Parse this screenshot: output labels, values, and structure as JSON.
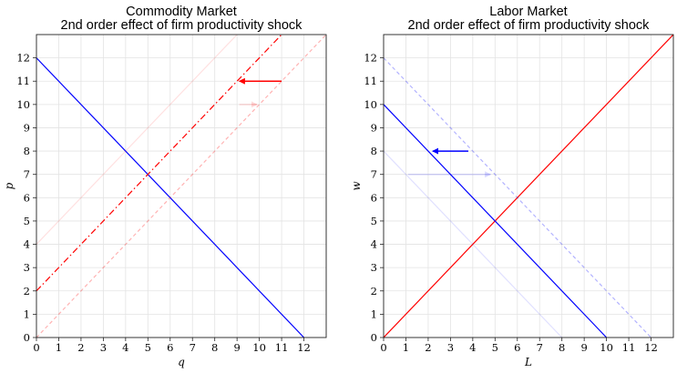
{
  "chart_data": [
    {
      "type": "line",
      "title_line1": "Commodity Market",
      "title_line2": "2nd order effect of firm productivity shock",
      "xlabel": "q",
      "ylabel": "p",
      "xlim": [
        0,
        13
      ],
      "ylim": [
        0,
        13
      ],
      "xticks": [
        "0",
        "1",
        "2",
        "3",
        "4",
        "5",
        "6",
        "7",
        "8",
        "9",
        "10",
        "11",
        "12"
      ],
      "yticks": [
        "0",
        "1",
        "2",
        "3",
        "4",
        "5",
        "6",
        "7",
        "8",
        "9",
        "10",
        "11",
        "12"
      ],
      "grid": true,
      "lines": [
        {
          "id": "demand",
          "color": "#0000ff",
          "dash": "",
          "opacity": 1,
          "points": [
            [
              0,
              12
            ],
            [
              12,
              0
            ]
          ]
        },
        {
          "id": "supply-faint",
          "color": "#ff0000",
          "dash": "",
          "opacity": 0.12,
          "points": [
            [
              0,
              4
            ],
            [
              9,
              13
            ]
          ]
        },
        {
          "id": "supply-dashdot",
          "color": "#ff0000",
          "dash": "7,3,1.5,3",
          "opacity": 1,
          "points": [
            [
              0,
              2
            ],
            [
              11,
              13
            ]
          ]
        },
        {
          "id": "supply-dashed",
          "color": "#ff0000",
          "dash": "4,3",
          "opacity": 0.3,
          "points": [
            [
              0,
              0
            ],
            [
              13,
              13
            ]
          ]
        }
      ],
      "arrows": [
        {
          "id": "arrow-solid",
          "color": "#ff0000",
          "opacity": 1,
          "from": [
            11,
            11
          ],
          "to": [
            9.1,
            11
          ]
        },
        {
          "id": "arrow-faint",
          "color": "#ff0000",
          "opacity": 0.15,
          "from": [
            9.1,
            10
          ],
          "to": [
            9.9,
            10
          ]
        }
      ]
    },
    {
      "type": "line",
      "title_line1": "Labor Market",
      "title_line2": "2nd order effect of firm productivity shock",
      "xlabel": "L",
      "ylabel": "w",
      "xlim": [
        0,
        13
      ],
      "ylim": [
        0,
        13
      ],
      "xticks": [
        "0",
        "1",
        "2",
        "3",
        "4",
        "5",
        "6",
        "7",
        "8",
        "9",
        "10",
        "11",
        "12"
      ],
      "yticks": [
        "0",
        "1",
        "2",
        "3",
        "4",
        "5",
        "6",
        "7",
        "8",
        "9",
        "10",
        "11",
        "12"
      ],
      "grid": true,
      "lines": [
        {
          "id": "supply",
          "color": "#ff0000",
          "dash": "",
          "opacity": 1,
          "points": [
            [
              0,
              0
            ],
            [
              13,
              13
            ]
          ]
        },
        {
          "id": "demand",
          "color": "#0000ff",
          "dash": "",
          "opacity": 1,
          "points": [
            [
              0,
              10
            ],
            [
              10,
              0
            ]
          ]
        },
        {
          "id": "demand-dashed",
          "color": "#0000ff",
          "dash": "4,3",
          "opacity": 0.3,
          "points": [
            [
              0,
              12
            ],
            [
              12,
              0
            ]
          ]
        },
        {
          "id": "demand-faint",
          "color": "#0000ff",
          "dash": "",
          "opacity": 0.12,
          "points": [
            [
              0,
              8
            ],
            [
              8,
              0
            ]
          ]
        }
      ],
      "arrows": [
        {
          "id": "arrow-solid",
          "color": "#0000ff",
          "opacity": 1,
          "from": [
            3.8,
            8
          ],
          "to": [
            2.2,
            8
          ]
        },
        {
          "id": "arrow-faint",
          "color": "#0000ff",
          "opacity": 0.15,
          "from": [
            1.1,
            7
          ],
          "to": [
            4.8,
            7
          ]
        }
      ]
    }
  ]
}
